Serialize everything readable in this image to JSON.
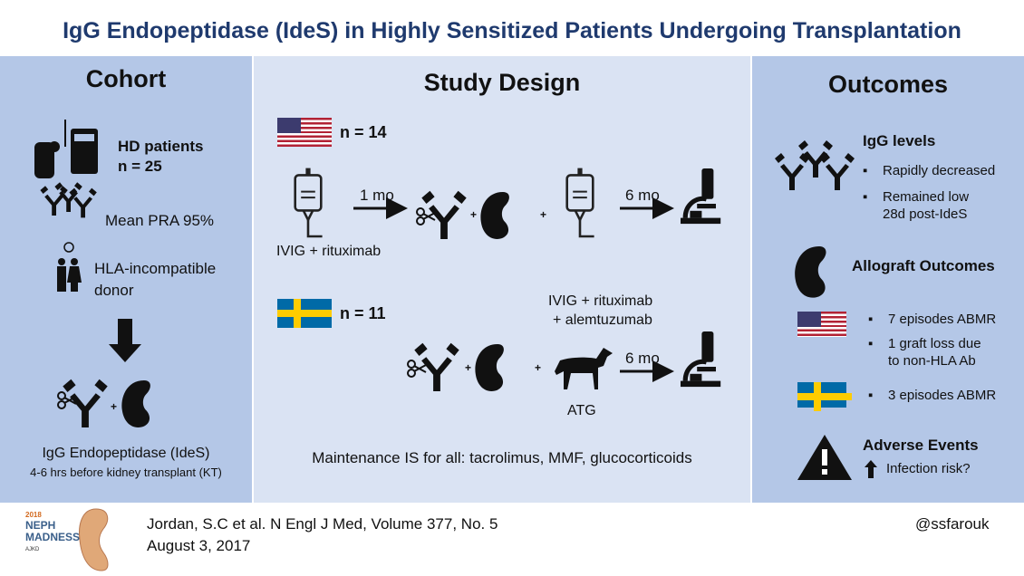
{
  "title": "IgG Endopeptidase (IdeS) in Highly Sensitized Patients Undergoing Transplantation",
  "cohort": {
    "heading": "Cohort",
    "hd_label": "HD patients",
    "hd_n": "n = 25",
    "pra": "Mean PRA 95%",
    "donor_line1": "HLA-incompatible",
    "donor_line2": "donor",
    "plus": "+",
    "ides": "IgG Endopeptidase (IdeS)",
    "timing": "4-6 hrs before kidney transplant (KT)"
  },
  "design": {
    "heading": "Study Design",
    "us": {
      "n": "n = 14",
      "pre": "IVIG + rituximab",
      "gap1": "1 mo",
      "post1": "IVIG + rituximab",
      "post2": "+ alemtuzumab",
      "gap2": "6 mo"
    },
    "se": {
      "n": "n = 11",
      "induction": "ATG",
      "gap": "6 mo"
    },
    "plus": "+",
    "maintenance": "Maintenance IS for all: tacrolimus, MMF, glucocorticoids"
  },
  "outcomes": {
    "heading": "Outcomes",
    "igg_title": "IgG levels",
    "igg_items": [
      "Rapidly decreased",
      "Remained low",
      "28d post-IdeS"
    ],
    "allograft_title": "Allograft Outcomes",
    "us_items": [
      "7 episodes ABMR",
      "1 graft loss due",
      "to non-HLA Ab"
    ],
    "se_items": [
      "3 episodes ABMR"
    ],
    "ae_title": "Adverse Events",
    "ae_item": "Infection risk?"
  },
  "footer": {
    "citation_line1": "Jordan, S.C et al. N Engl J Med, Volume 377, No. 5",
    "citation_line2": "August 3, 2017",
    "handle": "@ssfarouk",
    "logo_text": "2018 NEPH MADNESS AJKD"
  },
  "colors": {
    "title": "#1f3a6e",
    "side_panels": "#b4c7e7",
    "center_panel": "#dae3f3"
  }
}
